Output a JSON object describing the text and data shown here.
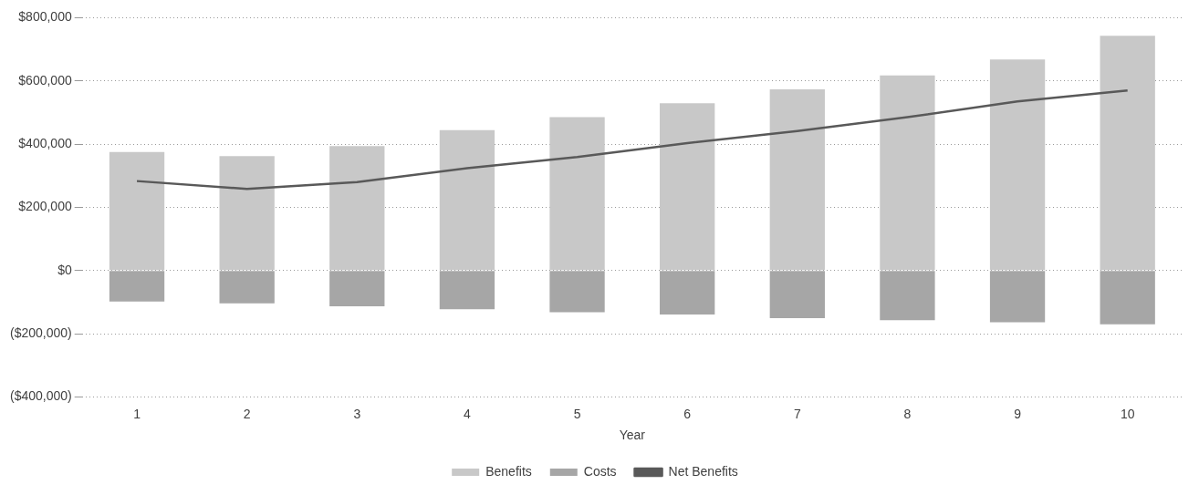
{
  "chart_data": {
    "type": "bar",
    "xlabel": "Year",
    "categories": [
      "1",
      "2",
      "3",
      "4",
      "5",
      "6",
      "7",
      "8",
      "9",
      "10"
    ],
    "stacked": true,
    "series": [
      {
        "name": "Benefits",
        "color": "#c8c8c8",
        "values": [
          375000,
          362000,
          394000,
          444000,
          485000,
          529000,
          573000,
          617000,
          668000,
          743000
        ]
      },
      {
        "name": "Costs",
        "color": "#a6a6a6",
        "values": [
          -98000,
          -104000,
          -113000,
          -123000,
          -132000,
          -139000,
          -151000,
          -157000,
          -164000,
          -170000
        ]
      },
      {
        "name": "Net Benefits",
        "type": "line",
        "color": "#595959",
        "values": [
          283000,
          258000,
          280000,
          324000,
          359000,
          403000,
          441000,
          485000,
          535000,
          570000
        ]
      }
    ],
    "ylim": [
      -400000,
      800000
    ],
    "yticks": [
      {
        "value": -400000,
        "label": "($400,000)"
      },
      {
        "value": -200000,
        "label": "($200,000)"
      },
      {
        "value": 0,
        "label": "$0"
      },
      {
        "value": 200000,
        "label": "$200,000"
      },
      {
        "value": 400000,
        "label": "$400,000"
      },
      {
        "value": 600000,
        "label": "$600,000"
      },
      {
        "value": 800000,
        "label": "$800,000"
      }
    ],
    "grid": "y",
    "legend": "bottom",
    "marker": "none",
    "line_style": "solid"
  }
}
